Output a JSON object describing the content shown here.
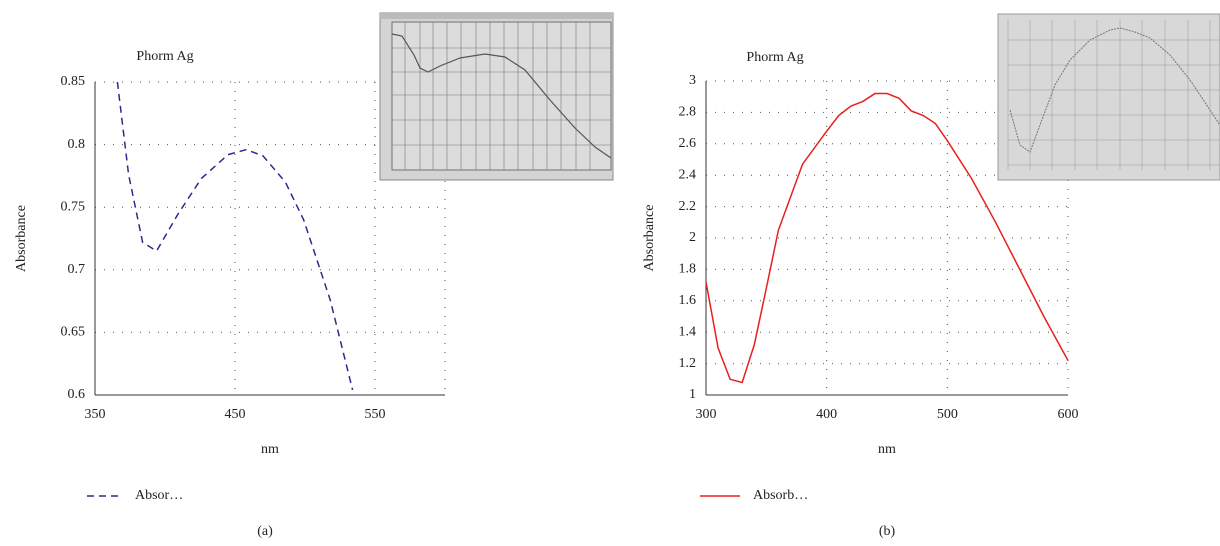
{
  "chart_data": [
    {
      "type": "line",
      "title": "Phorm Ag",
      "x_label": "nm",
      "y_label": "Absorbance",
      "caption": "(a)",
      "xlim": [
        350,
        600
      ],
      "xticks": [
        350,
        450,
        550
      ],
      "ylim": [
        0.6,
        0.85
      ],
      "yticks": [
        0.6,
        0.65,
        0.7,
        0.75,
        0.8,
        0.85
      ],
      "grid": true,
      "x": [
        366,
        374,
        384,
        394,
        409,
        426,
        445,
        458,
        470,
        486,
        499,
        518,
        534
      ],
      "series": [
        {
          "name": "Absor…",
          "color": "#2b2b8c",
          "line_style": "dashed",
          "values": [
            0.85,
            0.776,
            0.722,
            0.715,
            0.744,
            0.773,
            0.792,
            0.796,
            0.791,
            0.77,
            0.74,
            0.676,
            0.604
          ]
        }
      ]
    },
    {
      "type": "line",
      "title": "Phorm Ag",
      "x_label": "nm",
      "y_label": "Absorbance",
      "caption": "(b)",
      "xlim": [
        300,
        600
      ],
      "xticks": [
        300,
        400,
        500,
        600
      ],
      "ylim": [
        1,
        3
      ],
      "yticks": [
        1,
        1.2,
        1.4,
        1.6,
        1.8,
        2,
        2.2,
        2.4,
        2.6,
        2.8,
        3
      ],
      "grid": true,
      "x": [
        300,
        310,
        320,
        330,
        340,
        350,
        360,
        380,
        400,
        410,
        420,
        430,
        440,
        450,
        460,
        470,
        480,
        490,
        500,
        520,
        540,
        560,
        580,
        600
      ],
      "series": [
        {
          "name": "Absorb…",
          "color": "#e8201c",
          "line_style": "solid",
          "values": [
            1.72,
            1.3,
            1.1,
            1.08,
            1.32,
            1.68,
            2.05,
            2.47,
            2.68,
            2.78,
            2.84,
            2.87,
            2.92,
            2.92,
            2.89,
            2.81,
            2.78,
            2.73,
            2.62,
            2.38,
            2.1,
            1.8,
            1.5,
            1.22
          ]
        }
      ]
    }
  ]
}
